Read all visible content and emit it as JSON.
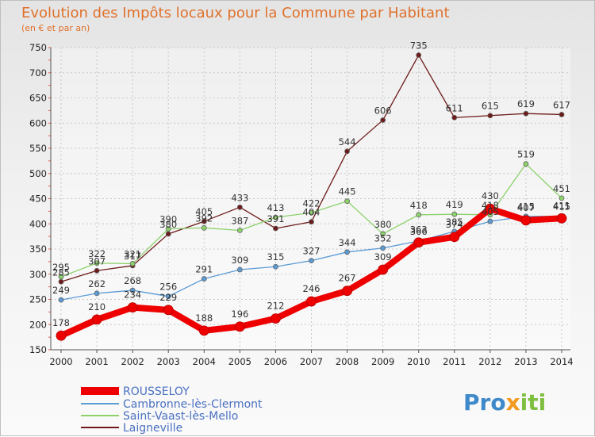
{
  "chart_data": {
    "type": "line",
    "title": "Evolution des Impôts locaux pour la Commune par Habitant",
    "subtitle": "(en € et par an)",
    "xlabel": "",
    "ylabel": "",
    "x": [
      "2000",
      "2001",
      "2002",
      "2003",
      "2004",
      "2005",
      "2006",
      "2007",
      "2008",
      "2009",
      "2010",
      "2011",
      "2012",
      "2013",
      "2014"
    ],
    "ylim": [
      150,
      750
    ],
    "yticks": [
      150,
      200,
      250,
      300,
      350,
      400,
      450,
      500,
      550,
      600,
      650,
      700,
      750
    ],
    "grid": true,
    "legend_position": "bottom-left",
    "series": [
      {
        "name": "ROUSSELOY",
        "color": "#ee0000",
        "values": [
          178,
          210,
          234,
          229,
          188,
          196,
          212,
          246,
          267,
          309,
          363,
          374,
          430,
          407,
          411
        ]
      },
      {
        "name": "Cambronne-lès-Clermont",
        "color": "#5b9bd5",
        "values": [
          249,
          262,
          268,
          256,
          291,
          309,
          315,
          327,
          344,
          352,
          366,
          385,
          405,
          415,
          415
        ]
      },
      {
        "name": "Saint-Vaast-lès-Mello",
        "color": "#8cd16a",
        "values": [
          295,
          322,
          321,
          390,
          392,
          387,
          413,
          422,
          445,
          380,
          418,
          419,
          418,
          519,
          451
        ]
      },
      {
        "name": "Laigneville",
        "color": "#6e1a1a",
        "values": [
          285,
          307,
          317,
          380,
          405,
          433,
          391,
          404,
          544,
          606,
          735,
          611,
          615,
          619,
          617
        ]
      }
    ]
  },
  "branding": {
    "logo_text": "Proxiti"
  }
}
